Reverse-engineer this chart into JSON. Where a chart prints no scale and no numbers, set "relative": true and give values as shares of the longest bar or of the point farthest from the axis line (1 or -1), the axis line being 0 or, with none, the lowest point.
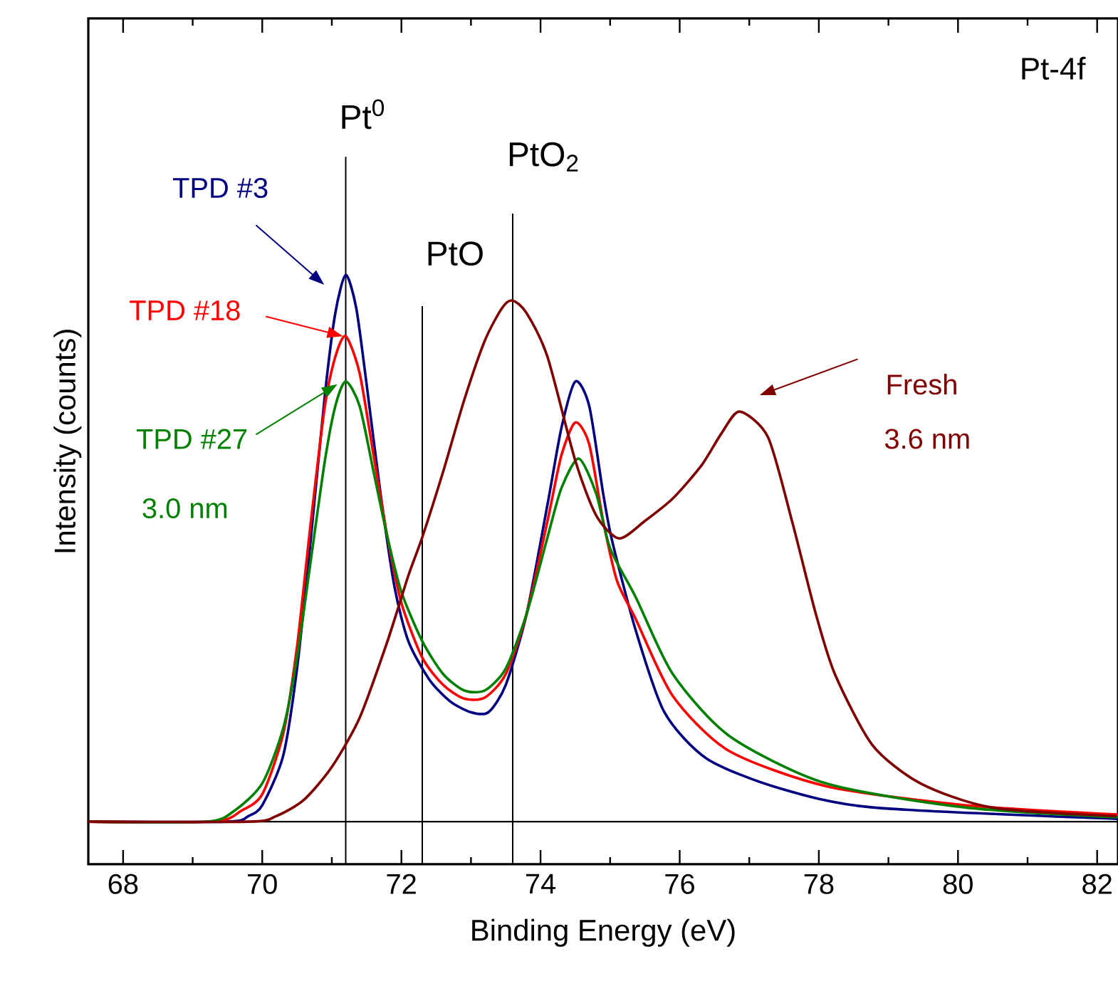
{
  "chart_data": {
    "type": "line",
    "relative": true,
    "xlabel": "Binding Energy (eV)",
    "ylabel": "Intensity (counts)",
    "xlim": [
      67.5,
      82.3
    ],
    "xticks": [
      68,
      70,
      72,
      74,
      76,
      78,
      80,
      82
    ],
    "series": [
      {
        "name": "TPD #3",
        "color": "#000080",
        "x": [
          67.5,
          69.5,
          69.8,
          70.0,
          70.3,
          70.5,
          70.7,
          70.9,
          71.05,
          71.2,
          71.35,
          71.5,
          71.7,
          71.9,
          72.1,
          72.4,
          72.7,
          73.0,
          73.25,
          73.5,
          73.8,
          74.1,
          74.3,
          74.5,
          74.7,
          74.9,
          75.03,
          75.37,
          75.78,
          76.39,
          77.41,
          78.77,
          82.3
        ],
        "values": [
          0.0,
          0.0,
          0.01,
          0.03,
          0.12,
          0.28,
          0.52,
          0.78,
          0.93,
          1.0,
          0.94,
          0.8,
          0.6,
          0.43,
          0.33,
          0.26,
          0.22,
          0.2,
          0.2,
          0.25,
          0.38,
          0.58,
          0.72,
          0.805,
          0.76,
          0.6,
          0.513,
          0.349,
          0.2,
          0.115,
          0.062,
          0.026,
          0.005
        ]
      },
      {
        "name": "TPD #18",
        "color": "#ff0000",
        "x": [
          67.5,
          69.3,
          69.7,
          70.0,
          70.3,
          70.5,
          70.7,
          70.9,
          71.05,
          71.2,
          71.4,
          71.6,
          71.8,
          72.0,
          72.3,
          72.6,
          72.9,
          73.2,
          73.5,
          73.8,
          74.1,
          74.3,
          74.5,
          74.7,
          74.9,
          75.1,
          75.37,
          75.9,
          76.7,
          78.1,
          80.1,
          82.3
        ],
        "values": [
          0.0,
          0.0,
          0.02,
          0.05,
          0.16,
          0.32,
          0.55,
          0.76,
          0.85,
          0.888,
          0.82,
          0.67,
          0.52,
          0.4,
          0.3,
          0.25,
          0.225,
          0.227,
          0.27,
          0.38,
          0.55,
          0.67,
          0.73,
          0.69,
          0.55,
          0.44,
          0.37,
          0.23,
          0.13,
          0.065,
          0.03,
          0.013
        ]
      },
      {
        "name": "TPD #27",
        "color": "#008000",
        "x": [
          67.5,
          69.2,
          69.6,
          70.0,
          70.3,
          70.5,
          70.7,
          70.9,
          71.05,
          71.2,
          71.4,
          71.6,
          71.8,
          72.0,
          72.3,
          72.6,
          72.9,
          73.2,
          73.5,
          73.8,
          74.1,
          74.3,
          74.55,
          74.8,
          75.0,
          75.37,
          75.9,
          76.72,
          78.1,
          80.1,
          82.3
        ],
        "values": [
          0.0,
          0.0,
          0.02,
          0.07,
          0.17,
          0.3,
          0.48,
          0.66,
          0.76,
          0.805,
          0.76,
          0.64,
          0.52,
          0.42,
          0.33,
          0.27,
          0.24,
          0.24,
          0.28,
          0.38,
          0.52,
          0.61,
          0.664,
          0.6,
          0.5,
          0.41,
          0.27,
          0.156,
          0.07,
          0.026,
          0.008
        ]
      },
      {
        "name": "Fresh",
        "color": "#800000",
        "x": [
          67.5,
          69.8,
          70.2,
          70.6,
          71.0,
          71.4,
          71.8,
          72.1,
          72.3,
          72.6,
          72.9,
          73.2,
          73.45,
          73.6,
          73.8,
          74.1,
          74.5,
          74.8,
          75.13,
          75.5,
          75.9,
          76.31,
          76.6,
          76.86,
          77.27,
          77.62,
          77.95,
          78.23,
          78.77,
          79.46,
          80.48,
          82.28
        ],
        "values": [
          0.0,
          0.0,
          0.01,
          0.04,
          0.1,
          0.19,
          0.33,
          0.45,
          0.52,
          0.64,
          0.77,
          0.88,
          0.94,
          0.953,
          0.93,
          0.85,
          0.66,
          0.56,
          0.518,
          0.55,
          0.591,
          0.651,
          0.71,
          0.75,
          0.703,
          0.547,
          0.383,
          0.27,
          0.14,
          0.07,
          0.026,
          0.01
        ]
      }
    ],
    "ref_lines": [
      {
        "axis": "x",
        "value": 71.2,
        "label": "Pt$^{0}$",
        "color": "#000000"
      },
      {
        "axis": "x",
        "value": 72.3,
        "label": "PtO",
        "color": "#000000"
      },
      {
        "axis": "x",
        "value": 73.6,
        "label": "PtO$_{2}$",
        "color": "#000000"
      }
    ],
    "annotations": [
      "Pt-4f",
      "3.0 nm",
      "3.6 nm"
    ]
  }
}
